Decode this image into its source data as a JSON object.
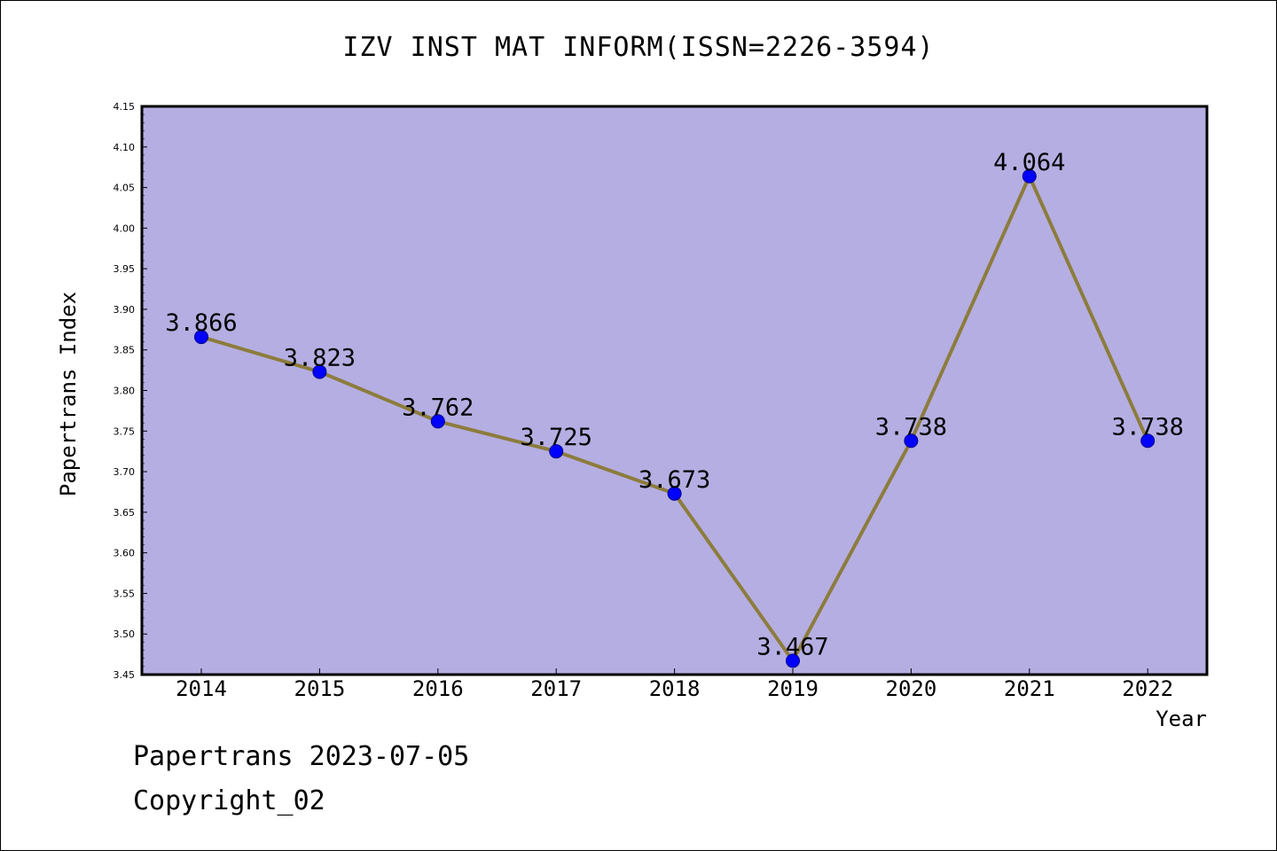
{
  "chart_data": {
    "type": "line",
    "title": "IZV INST MAT INFORM(ISSN=2226-3594)",
    "xlabel": "Year",
    "ylabel": "Papertrans Index",
    "categories": [
      "2014",
      "2015",
      "2016",
      "2017",
      "2018",
      "2019",
      "2020",
      "2021",
      "2022"
    ],
    "values": [
      3.866,
      3.823,
      3.762,
      3.725,
      3.673,
      3.467,
      3.738,
      4.064,
      3.738
    ],
    "value_labels": [
      "3.866",
      "3.823",
      "3.762",
      "3.725",
      "3.673",
      "3.467",
      "3.738",
      "4.064",
      "3.738"
    ],
    "ylim": [
      3.45,
      4.15
    ],
    "yticks": [
      "3.45",
      "3.50",
      "3.55",
      "3.60",
      "3.65",
      "3.70",
      "3.75",
      "3.80",
      "3.85",
      "3.90",
      "3.95",
      "4.00",
      "4.05",
      "4.10",
      "4.15"
    ],
    "grid": false,
    "colors": {
      "plot_background": "#b5aee2",
      "line": "#8c7c3c",
      "marker": "#0000ff"
    }
  },
  "footer": {
    "date_text": "Papertrans 2023-07-05",
    "copyright_text": "Copyright_02"
  }
}
